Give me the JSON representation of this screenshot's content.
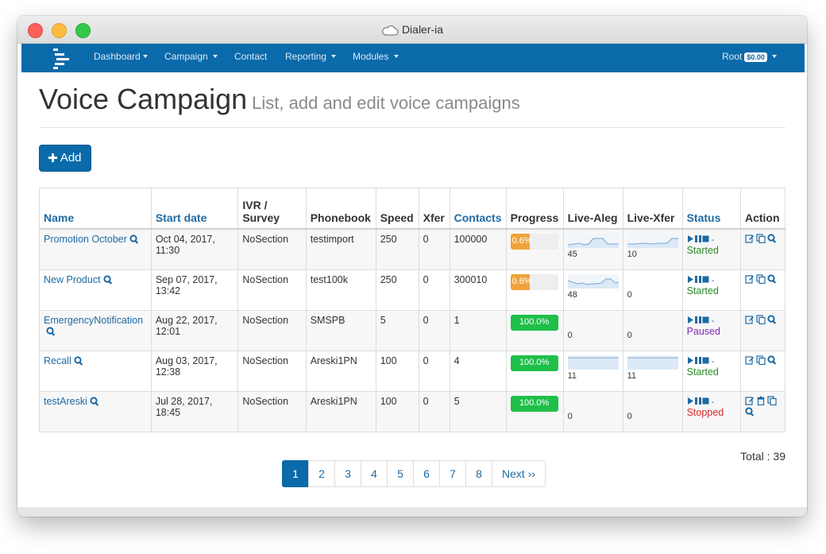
{
  "window": {
    "title": "Dialer-ia"
  },
  "nav": {
    "items": [
      {
        "label": "Dashboard",
        "caret": true
      },
      {
        "label": "Campaign",
        "caret": true
      },
      {
        "label": "Contact",
        "caret": false
      },
      {
        "label": "Reporting",
        "caret": true
      },
      {
        "label": "Modules",
        "caret": true
      }
    ],
    "user": "Root",
    "balance": "$0.00"
  },
  "page": {
    "title": "Voice Campaign",
    "subtitle": "List, add and edit voice campaigns",
    "add_label": "Add"
  },
  "table": {
    "headers": {
      "name": "Name",
      "start": "Start date",
      "ivr": "IVR / Survey",
      "phonebook": "Phonebook",
      "speed": "Speed",
      "xfer": "Xfer",
      "contacts": "Contacts",
      "progress": "Progress",
      "live_aleg": "Live-Aleg",
      "live_xfer": "Live-Xfer",
      "status": "Status",
      "action": "Action"
    },
    "rows": [
      {
        "name": "Promotion October",
        "start": "Oct 04, 2017, 11:30",
        "ivr": "NoSection",
        "phonebook": "testimport",
        "speed": "250",
        "xfer": "0",
        "contacts": "100000",
        "progress_label": "0.6%",
        "progress": 0.006,
        "aleg": "45",
        "xferlive": "10",
        "status": "Started"
      },
      {
        "name": "New Product",
        "start": "Sep 07, 2017, 13:42",
        "ivr": "NoSection",
        "phonebook": "test100k",
        "speed": "250",
        "xfer": "0",
        "contacts": "300010",
        "progress_label": "0.6%",
        "progress": 0.006,
        "aleg": "48",
        "xferlive": "0",
        "status": "Started"
      },
      {
        "name": "EmergencyNotification",
        "start": "Aug 22, 2017, 12:01",
        "ivr": "NoSection",
        "phonebook": "SMSPB",
        "speed": "5",
        "xfer": "0",
        "contacts": "1",
        "progress_label": "100.0%",
        "progress": 1.0,
        "aleg": "0",
        "xferlive": "0",
        "status": "Paused"
      },
      {
        "name": "Recall",
        "start": "Aug 03, 2017, 12:38",
        "ivr": "NoSection",
        "phonebook": "Areski1PN",
        "speed": "100",
        "xfer": "0",
        "contacts": "4",
        "progress_label": "100.0%",
        "progress": 1.0,
        "aleg": "11",
        "xferlive": "11",
        "status": "Started"
      },
      {
        "name": "testAreski",
        "start": "Jul 28, 2017, 18:45",
        "ivr": "NoSection",
        "phonebook": "Areski1PN",
        "speed": "100",
        "xfer": "0",
        "contacts": "5",
        "progress_label": "100.0%",
        "progress": 1.0,
        "aleg": "0",
        "xferlive": "0",
        "status": "Stopped"
      }
    ]
  },
  "pagination": {
    "pages": [
      "1",
      "2",
      "3",
      "4",
      "5",
      "6",
      "7",
      "8"
    ],
    "active": "1",
    "next_label": "Next ››",
    "total": "Total : 39"
  },
  "colors": {
    "navbar": "#0a6aaa",
    "link": "#1f6aa3",
    "started": "#2b8a2b",
    "paused": "#7b2ab5",
    "stopped": "#d42a2a"
  },
  "icons": [
    "cloud-icon",
    "menu-logo-icon",
    "plus-icon",
    "search-icon",
    "play-icon",
    "pause-icon",
    "stop-icon",
    "edit-icon",
    "copy-icon",
    "trash-icon"
  ]
}
